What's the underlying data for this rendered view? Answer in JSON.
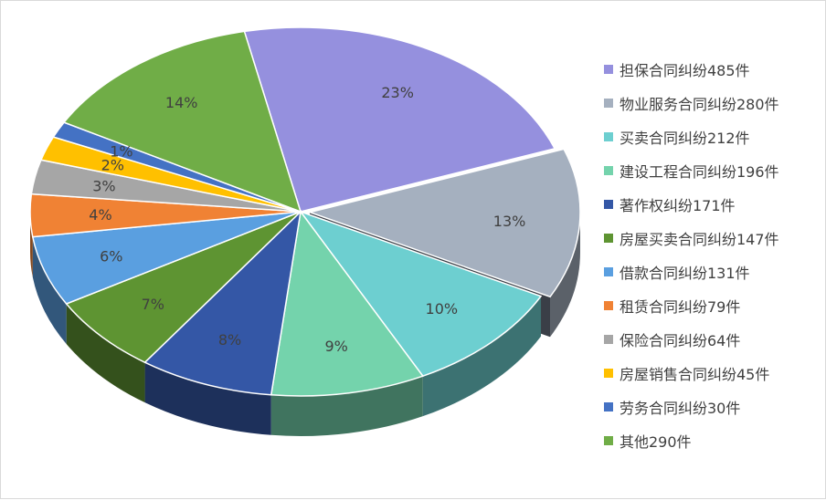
{
  "chart_data": {
    "type": "pie",
    "title": "",
    "legend_position": "right",
    "slices": [
      {
        "label": "担保合同纠纷485件",
        "value": 485,
        "percent_label": "23%",
        "color": "#9590de"
      },
      {
        "label": "物业服务合同纠纷280件",
        "value": 280,
        "percent_label": "13%",
        "color": "#a5b0bf"
      },
      {
        "label": "买卖合同纠纷212件",
        "value": 212,
        "percent_label": "10%",
        "color": "#6dcfd0"
      },
      {
        "label": "建设工程合同纠纷196件",
        "value": 196,
        "percent_label": "9%",
        "color": "#74d3ac"
      },
      {
        "label": "著作权纠纷171件",
        "value": 171,
        "percent_label": "8%",
        "color": "#3457a6"
      },
      {
        "label": "房屋买卖合同纠纷147件",
        "value": 147,
        "percent_label": "7%",
        "color": "#5e9432"
      },
      {
        "label": "借款合同纠纷131件",
        "value": 131,
        "percent_label": "6%",
        "color": "#5a9fe0"
      },
      {
        "label": "租赁合同纠纷79件",
        "value": 79,
        "percent_label": "4%",
        "color": "#f08234"
      },
      {
        "label": "保险合同纠纷64件",
        "value": 64,
        "percent_label": "3%",
        "color": "#a6a6a6"
      },
      {
        "label": "房屋销售合同纠纷45件",
        "value": 45,
        "percent_label": "2%",
        "color": "#ffc000"
      },
      {
        "label": "劳务合同纠纷30件",
        "value": 30,
        "percent_label": "1%",
        "color": "#4472c4"
      },
      {
        "label": "其他290件",
        "value": 290,
        "percent_label": "14%",
        "color": "#70ad47"
      }
    ]
  }
}
